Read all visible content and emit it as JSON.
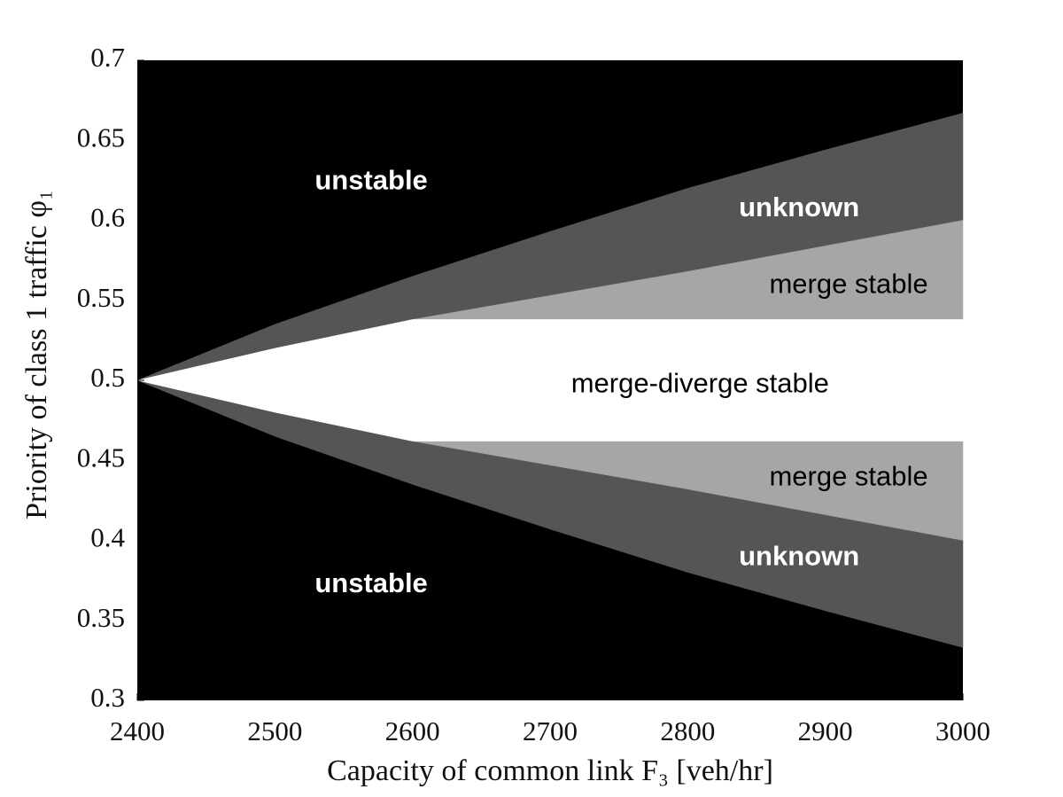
{
  "chart_data": {
    "type": "area",
    "xlabel": "Capacity of common link F₃ [veh/hr]",
    "ylabel": "Priority of class 1 traffic φ₁",
    "background": "#000000",
    "x": [
      2400,
      2500,
      2600,
      2700,
      2800,
      2900,
      3000
    ],
    "series": [
      {
        "color": "#555555",
        "upper": [
          0.5,
          0.535,
          0.565,
          0.593,
          0.62,
          0.644,
          0.667
        ],
        "lower": [
          0.5,
          0.52,
          0.538,
          0.553,
          0.568,
          0.584,
          0.6
        ]
      },
      {
        "color": "#555555",
        "upper": [
          0.5,
          0.48,
          0.462,
          0.447,
          0.432,
          0.416,
          0.4
        ],
        "lower": [
          0.5,
          0.465,
          0.435,
          0.407,
          0.38,
          0.356,
          0.333
        ]
      },
      {
        "color": "#a6a6a6",
        "upper": [
          null,
          null,
          0.538,
          0.553,
          0.568,
          0.584,
          0.6
        ],
        "lower": [
          null,
          null,
          0.538,
          0.538,
          0.538,
          0.538,
          0.538
        ]
      },
      {
        "color": "#a6a6a6",
        "upper": [
          null,
          null,
          0.462,
          0.462,
          0.462,
          0.462,
          0.462
        ],
        "lower": [
          null,
          null,
          0.462,
          0.447,
          0.432,
          0.416,
          0.4
        ]
      },
      {
        "color": "#ffffff",
        "upper": [
          0.5,
          0.52,
          0.538,
          0.538,
          0.538,
          0.538,
          0.538
        ],
        "lower": [
          0.5,
          0.48,
          0.462,
          0.462,
          0.462,
          0.462,
          0.462
        ]
      }
    ],
    "annotations": [
      {
        "text": "unstable",
        "x": 2570,
        "y": 0.624,
        "color": "#ffffff",
        "bold": true
      },
      {
        "text": "unknown",
        "x": 2881,
        "y": 0.607,
        "color": "#ffffff",
        "bold": true
      },
      {
        "text": "merge stable",
        "x": 2917,
        "y": 0.559,
        "color": "#000000",
        "bold": false
      },
      {
        "text": "merge-diverge stable",
        "x": 2809,
        "y": 0.497,
        "color": "#000000",
        "bold": false
      },
      {
        "text": "merge stable",
        "x": 2917,
        "y": 0.439,
        "color": "#000000",
        "bold": false
      },
      {
        "text": "unknown",
        "x": 2881,
        "y": 0.389,
        "color": "#ffffff",
        "bold": true
      },
      {
        "text": "unstable",
        "x": 2570,
        "y": 0.372,
        "color": "#ffffff",
        "bold": true
      }
    ],
    "xlim": [
      2400,
      3000
    ],
    "ylim": [
      0.3,
      0.7
    ],
    "xticks": [
      2400,
      2500,
      2600,
      2700,
      2800,
      2900,
      3000
    ],
    "yticks": [
      0.3,
      0.35,
      0.4,
      0.45,
      0.5,
      0.55,
      0.6,
      0.65,
      0.7
    ]
  }
}
